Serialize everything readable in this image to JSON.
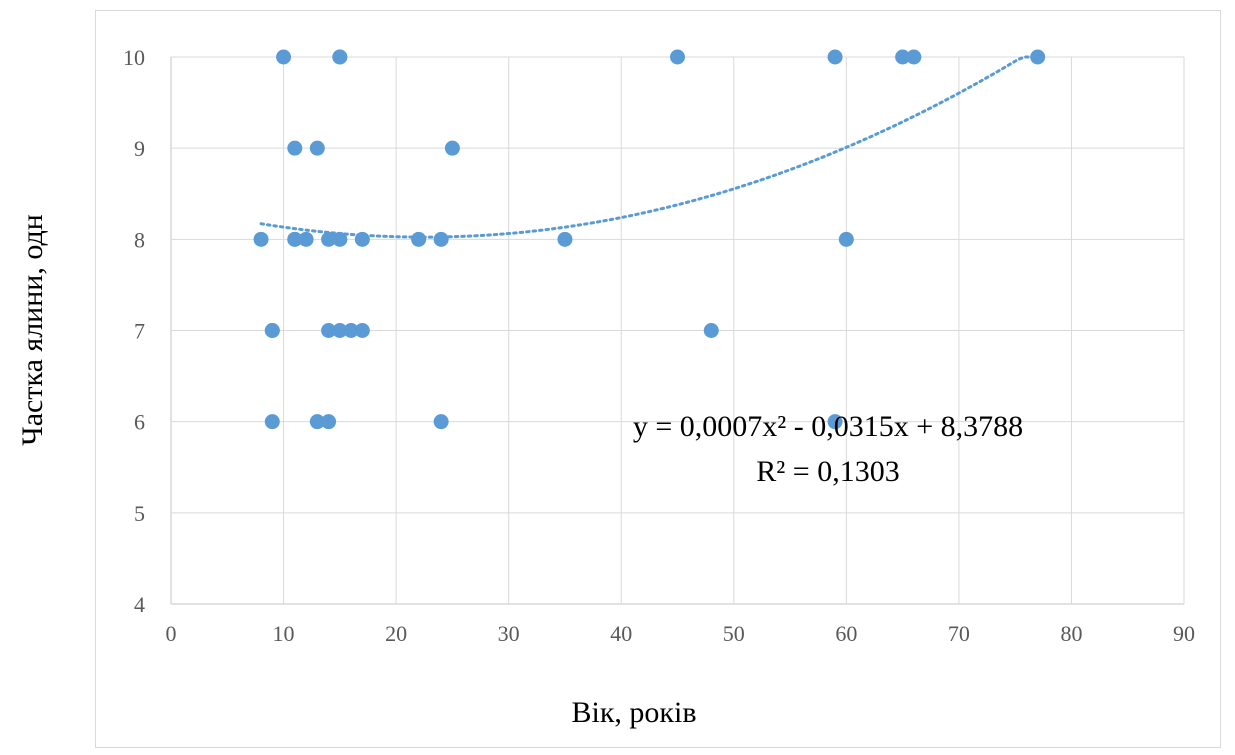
{
  "chart_data": {
    "type": "scatter",
    "title": "",
    "xlabel": "Вік, років",
    "ylabel": "Частка ялини, одн",
    "xlim": [
      0,
      90
    ],
    "ylim": [
      4,
      10
    ],
    "xticks": [
      0,
      10,
      20,
      30,
      40,
      50,
      60,
      70,
      80,
      90
    ],
    "yticks": [
      4,
      5,
      6,
      7,
      8,
      9,
      10
    ],
    "grid": true,
    "legend": "none",
    "colors": {
      "points": "#5b9bd5",
      "trendline": "#5b9bd5",
      "grid": "#d9d9d9"
    },
    "series": [
      {
        "points": [
          [
            8,
            8
          ],
          [
            9,
            7
          ],
          [
            9,
            7
          ],
          [
            9,
            6
          ],
          [
            10,
            10
          ],
          [
            11,
            9
          ],
          [
            11,
            8
          ],
          [
            11,
            8
          ],
          [
            12,
            8
          ],
          [
            13,
            9
          ],
          [
            13,
            6
          ],
          [
            14,
            8
          ],
          [
            14,
            7
          ],
          [
            14,
            6
          ],
          [
            15,
            10
          ],
          [
            15,
            10
          ],
          [
            15,
            8
          ],
          [
            15,
            7
          ],
          [
            16,
            7
          ],
          [
            17,
            8
          ],
          [
            17,
            7
          ],
          [
            22,
            8
          ],
          [
            24,
            8
          ],
          [
            24,
            6
          ],
          [
            25,
            9
          ],
          [
            35,
            8
          ],
          [
            45,
            10
          ],
          [
            48,
            7
          ],
          [
            59,
            10
          ],
          [
            59,
            6
          ],
          [
            60,
            8
          ],
          [
            65,
            10
          ],
          [
            66,
            10
          ],
          [
            77,
            10
          ]
        ]
      }
    ],
    "trendline": {
      "type": "polynomial",
      "order": 2,
      "coefficients": [
        0.0007,
        -0.0315,
        8.3788
      ],
      "x_range": [
        8,
        77
      ],
      "style": "dotted"
    },
    "annotations": {
      "equation": "y = 0,0007x² - 0,0315x + 8,3788",
      "r_squared": "R² = 0,1303"
    }
  }
}
